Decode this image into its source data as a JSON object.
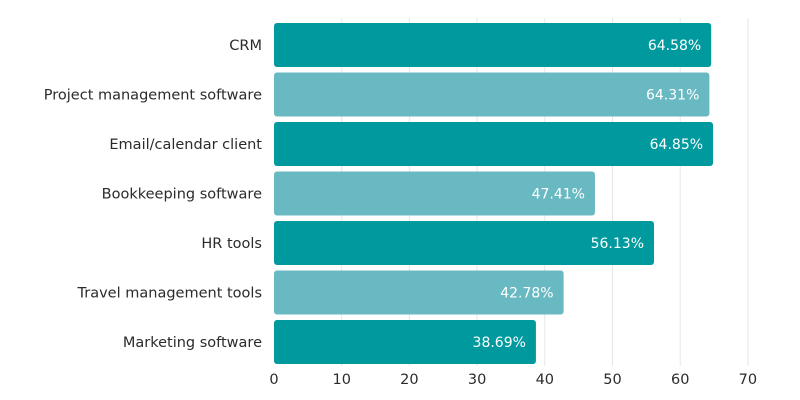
{
  "chart_data": {
    "type": "bar",
    "orientation": "horizontal",
    "categories": [
      "CRM",
      "Project management software",
      "Email/calendar client",
      "Bookkeeping software",
      "HR tools",
      "Travel management tools",
      "Marketing software"
    ],
    "values": [
      64.58,
      64.31,
      64.85,
      47.41,
      56.13,
      42.78,
      38.69
    ],
    "value_labels": [
      "64.58%",
      "64.31%",
      "64.85%",
      "47.41%",
      "56.13%",
      "42.78%",
      "38.69%"
    ],
    "bar_colors": [
      "#009a9e",
      "#69b9c3",
      "#009a9e",
      "#69b9c3",
      "#009a9e",
      "#69b9c3",
      "#009a9e"
    ],
    "xticks": [
      0,
      10,
      20,
      30,
      40,
      50,
      60,
      70
    ],
    "xlim": [
      0,
      70
    ],
    "grid": "vertical",
    "title": "",
    "xlabel": "",
    "ylabel": ""
  }
}
